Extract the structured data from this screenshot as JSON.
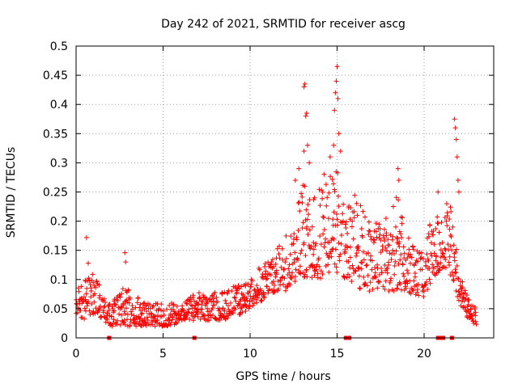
{
  "chart_data": {
    "type": "scatter",
    "title": "Day 242 of 2021, SRMTID for receiver ascg",
    "xlabel": "GPS time / hours",
    "ylabel": "SRMTID / TECUs",
    "xlim": [
      0,
      24
    ],
    "ylim": [
      0,
      0.5
    ],
    "x_ticks": [
      0,
      5,
      10,
      15,
      20
    ],
    "x_tick_labels": [
      "0",
      "5",
      "10",
      "15",
      "20"
    ],
    "y_ticks": [
      0,
      0.05,
      0.1,
      0.15,
      0.2,
      0.25,
      0.3,
      0.35,
      0.4,
      0.45,
      0.5
    ],
    "y_tick_labels": [
      "0",
      "0.05",
      "0.1",
      "0.15",
      "0.2",
      "0.25",
      "0.3",
      "0.35",
      "0.4",
      "0.45",
      "0.5"
    ],
    "grid": true,
    "marker": "+",
    "series_color": "#ff0000",
    "envelope": {
      "x": [
        0,
        0.5,
        1,
        1.5,
        2,
        2.5,
        3,
        3.5,
        4,
        4.5,
        5,
        5.5,
        6,
        6.5,
        7,
        7.5,
        8,
        8.5,
        9,
        9.5,
        10,
        10.5,
        11,
        11.5,
        12,
        12.5,
        13,
        13.5,
        14,
        14.5,
        15,
        15.5,
        16,
        16.5,
        17,
        17.5,
        18,
        18.5,
        19,
        19.5,
        20,
        20.5,
        21,
        21.5,
        22,
        22.5,
        23
      ],
      "low": [
        0.04,
        0.03,
        0.04,
        0.03,
        0.02,
        0.02,
        0.02,
        0.02,
        0.02,
        0.02,
        0.02,
        0.02,
        0.03,
        0.03,
        0.03,
        0.03,
        0.03,
        0.03,
        0.04,
        0.04,
        0.05,
        0.06,
        0.07,
        0.08,
        0.08,
        0.09,
        0.1,
        0.1,
        0.1,
        0.11,
        0.11,
        0.1,
        0.09,
        0.08,
        0.08,
        0.08,
        0.08,
        0.08,
        0.08,
        0.07,
        0.07,
        0.1,
        0.12,
        0.12,
        0.06,
        0.03,
        0.02
      ],
      "high": [
        0.08,
        0.1,
        0.11,
        0.08,
        0.06,
        0.08,
        0.1,
        0.07,
        0.06,
        0.06,
        0.06,
        0.06,
        0.06,
        0.07,
        0.08,
        0.07,
        0.08,
        0.08,
        0.09,
        0.09,
        0.1,
        0.12,
        0.14,
        0.15,
        0.18,
        0.2,
        0.28,
        0.23,
        0.28,
        0.3,
        0.3,
        0.22,
        0.25,
        0.22,
        0.2,
        0.2,
        0.22,
        0.25,
        0.18,
        0.15,
        0.15,
        0.22,
        0.2,
        0.24,
        0.12,
        0.07,
        0.05
      ]
    },
    "spikes": [
      {
        "x": 0.6,
        "y": 0.172
      },
      {
        "x": 0.7,
        "y": 0.128
      },
      {
        "x": 2.8,
        "y": 0.146
      },
      {
        "x": 2.85,
        "y": 0.13
      },
      {
        "x": 12.6,
        "y": 0.27
      },
      {
        "x": 12.8,
        "y": 0.29
      },
      {
        "x": 13.1,
        "y": 0.43
      },
      {
        "x": 13.15,
        "y": 0.435
      },
      {
        "x": 13.2,
        "y": 0.38
      },
      {
        "x": 13.25,
        "y": 0.385
      },
      {
        "x": 13.1,
        "y": 0.32
      },
      {
        "x": 13.3,
        "y": 0.33
      },
      {
        "x": 13.4,
        "y": 0.3
      },
      {
        "x": 13.7,
        "y": 0.24
      },
      {
        "x": 14.9,
        "y": 0.42
      },
      {
        "x": 14.95,
        "y": 0.44
      },
      {
        "x": 15.0,
        "y": 0.465
      },
      {
        "x": 15.05,
        "y": 0.41
      },
      {
        "x": 14.85,
        "y": 0.39
      },
      {
        "x": 14.8,
        "y": 0.33
      },
      {
        "x": 15.1,
        "y": 0.35
      },
      {
        "x": 15.2,
        "y": 0.32
      },
      {
        "x": 14.6,
        "y": 0.31
      },
      {
        "x": 15.35,
        "y": 0.2
      },
      {
        "x": 18.5,
        "y": 0.29
      },
      {
        "x": 18.55,
        "y": 0.27
      },
      {
        "x": 20.8,
        "y": 0.25
      },
      {
        "x": 21.3,
        "y": 0.23
      },
      {
        "x": 21.5,
        "y": 0.108
      },
      {
        "x": 21.75,
        "y": 0.375
      },
      {
        "x": 21.8,
        "y": 0.36
      },
      {
        "x": 21.85,
        "y": 0.34
      },
      {
        "x": 21.9,
        "y": 0.31
      },
      {
        "x": 21.95,
        "y": 0.27
      },
      {
        "x": 22.0,
        "y": 0.25
      }
    ],
    "zero_markers_x": [
      1.9,
      6.8,
      15.5,
      15.6,
      15.7,
      20.8,
      21.0,
      21.1,
      21.6
    ]
  }
}
